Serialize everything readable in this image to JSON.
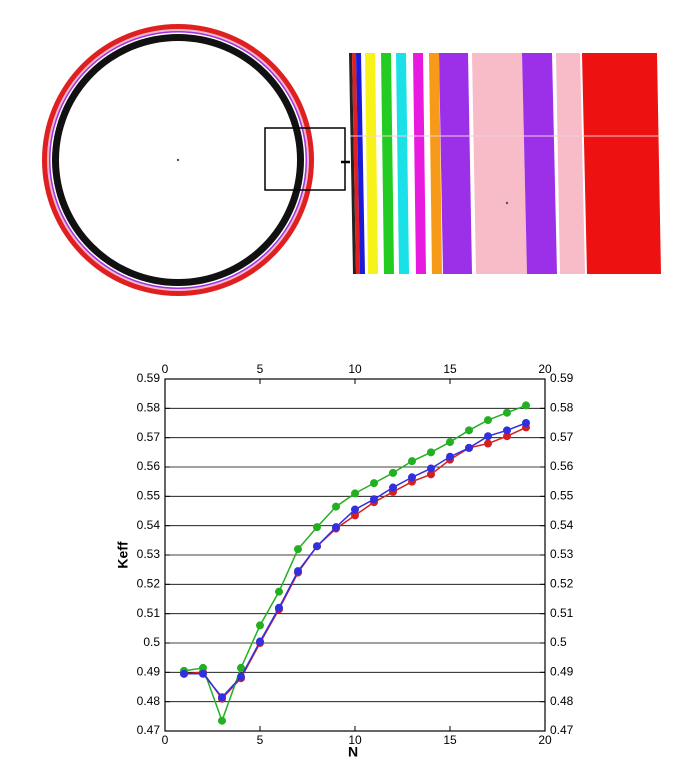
{
  "chart_data": {
    "type": "line",
    "x": [
      1,
      2,
      3,
      4,
      5,
      6,
      7,
      8,
      9,
      10,
      11,
      12,
      13,
      14,
      15,
      16,
      17,
      18,
      19
    ],
    "series": [
      {
        "color": "#d42020",
        "values": [
          0.4895,
          0.49,
          0.481,
          0.488,
          0.5,
          0.5115,
          0.524,
          0.533,
          0.539,
          0.5435,
          0.548,
          0.5515,
          0.555,
          0.5575,
          0.5625,
          0.5665,
          0.568,
          0.5705,
          0.5735
        ]
      },
      {
        "color": "#22b022",
        "values": [
          0.4905,
          0.4915,
          0.4735,
          0.4915,
          0.506,
          0.5175,
          0.532,
          0.5395,
          0.5465,
          0.551,
          0.5545,
          0.558,
          0.562,
          0.565,
          0.5685,
          0.5725,
          0.576,
          0.5785,
          0.581
        ]
      },
      {
        "color": "#3030e0",
        "values": [
          0.4895,
          0.4895,
          0.4815,
          0.4885,
          0.5005,
          0.512,
          0.5245,
          0.533,
          0.5395,
          0.5455,
          0.549,
          0.553,
          0.5565,
          0.5595,
          0.5635,
          0.5665,
          0.5705,
          0.5725,
          0.575
        ]
      }
    ],
    "xlabel": "N",
    "ylabel": "Keff",
    "xlim": [
      0,
      20
    ],
    "xticks": [
      0,
      5,
      10,
      15,
      20
    ],
    "ylim": [
      0.47,
      0.59
    ],
    "yticks": [
      0.47,
      0.48,
      0.49,
      0.5,
      0.51,
      0.52,
      0.53,
      0.54,
      0.55,
      0.56,
      0.57,
      0.58,
      0.59
    ],
    "grid": true
  }
}
